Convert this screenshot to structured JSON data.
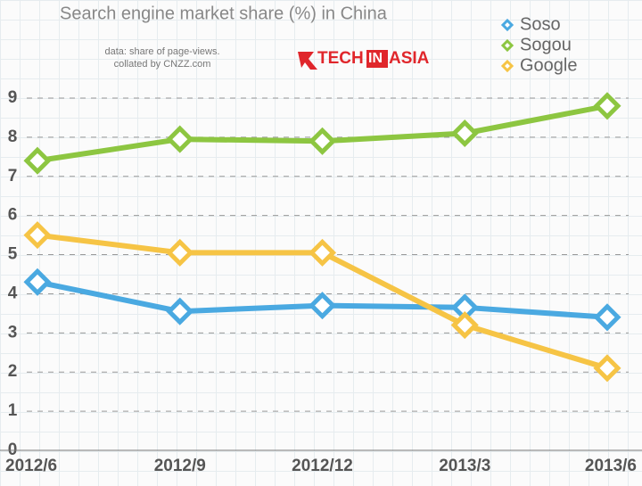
{
  "chart_data": {
    "type": "line",
    "title": "Search engine market share (%) in China",
    "note": [
      "data: share of page-views.",
      "collated by CNZZ.com"
    ],
    "logo": [
      "TECH",
      "IN",
      "ASIA"
    ],
    "categories": [
      "2012/6",
      "2012/9",
      "2012/12",
      "2013/3",
      "2013/6"
    ],
    "series": [
      {
        "name": "Soso",
        "color": "#4aa9e1",
        "values": [
          4.3,
          3.55,
          3.7,
          3.65,
          3.4
        ]
      },
      {
        "name": "Sogou",
        "color": "#8dc641",
        "values": [
          7.4,
          7.95,
          7.9,
          8.1,
          8.8
        ]
      },
      {
        "name": "Google",
        "color": "#f6c445",
        "values": [
          5.5,
          5.05,
          5.05,
          3.2,
          2.1
        ]
      }
    ],
    "ylim": [
      0,
      9
    ],
    "yticks": [
      0,
      1,
      2,
      3,
      4,
      5,
      6,
      7,
      8,
      9
    ],
    "grid": true,
    "legend": "top-right"
  }
}
